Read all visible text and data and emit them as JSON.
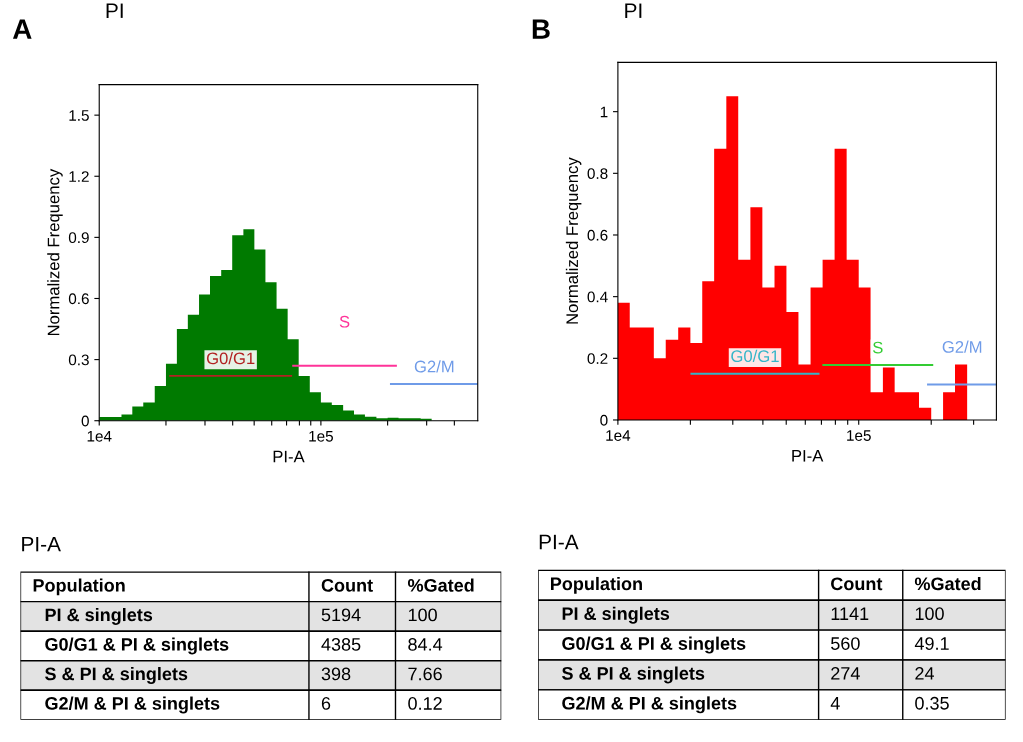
{
  "chart_data": [
    {
      "type": "histogram",
      "title": "PI",
      "annotations": [
        "A"
      ],
      "xlabel": "PI-A",
      "ylabel": "Normalized Frequency",
      "log": "x",
      "legend": false,
      "grid": false,
      "bins": [
        10000,
        11200,
        12600,
        14100,
        15800,
        17800,
        20000,
        22400,
        25100,
        28200,
        31600,
        35500,
        39800,
        44700,
        50100,
        56200,
        63100,
        70800,
        79400,
        89100,
        100000,
        112000,
        126000,
        141000,
        158000,
        178000,
        200000,
        224000,
        251000,
        282000,
        316000,
        355000,
        398000,
        447000,
        501000
      ],
      "values": [
        0.018,
        0.018,
        0.03,
        0.07,
        0.09,
        0.17,
        0.28,
        0.45,
        0.52,
        0.62,
        0.71,
        0.74,
        0.91,
        0.94,
        0.84,
        0.68,
        0.55,
        0.4,
        0.22,
        0.14,
        0.09,
        0.077,
        0.05,
        0.03,
        0.02,
        0.012,
        0.015,
        0.012,
        0.012,
        0.01,
        0,
        0,
        0,
        0
      ],
      "color": "#007a00",
      "series": [
        {
          "type": "line",
          "name": "G0/G1",
          "color": "#b22222",
          "x": [
            20900,
            73400
          ],
          "values": [
            0.22,
            0.22
          ]
        },
        {
          "type": "line",
          "name": "S",
          "color": "#ff3399",
          "x": [
            75000,
            218000
          ],
          "values": [
            0.27,
            0.27
          ]
        },
        {
          "type": "line",
          "name": "G2/M",
          "color": "#6f9be8",
          "x": [
            207000,
            510000
          ],
          "values": [
            0.18,
            0.18
          ]
        }
      ],
      "xlim": [
        10000,
        510000
      ],
      "ylim": [
        0,
        1.65
      ],
      "xticks": [
        {
          "value": 10000,
          "label": "1e4"
        },
        {
          "value": 20000,
          "label": null
        },
        {
          "value": 30000,
          "label": null
        },
        {
          "value": 40000,
          "label": null
        },
        {
          "value": 50000,
          "label": null
        },
        {
          "value": 60000,
          "label": null
        },
        {
          "value": 70000,
          "label": null
        },
        {
          "value": 80000,
          "label": null
        },
        {
          "value": 90000,
          "label": null
        },
        {
          "value": 100000,
          "label": "1e5"
        },
        {
          "value": 200000,
          "label": null
        },
        {
          "value": 300000,
          "label": null
        },
        {
          "value": 400000,
          "label": null
        }
      ],
      "yticks": [
        0,
        0.3,
        0.6,
        0.9,
        1.2,
        1.5
      ]
    },
    {
      "type": "other",
      "title": "PI-A",
      "categories": [
        "Population",
        "Count",
        "%Gated"
      ],
      "y_categories": [
        "PI & singlets",
        "G0/G1 & PI & singlets",
        "S & PI & singlets",
        "G2/M & PI & singlets"
      ],
      "cell_labels": [
        [
          "5194",
          "100"
        ],
        [
          "4385",
          "84.4"
        ],
        [
          "398",
          "7.66"
        ],
        [
          "6",
          "0.12"
        ]
      ]
    },
    {
      "type": "histogram",
      "title": "PI",
      "annotations": [
        "B"
      ],
      "xlabel": "PI-A",
      "ylabel": "Normalized Frequency",
      "log": "x",
      "legend": false,
      "grid": false,
      "bins": [
        10000,
        11200,
        12600,
        14100,
        15800,
        17800,
        20000,
        22400,
        25100,
        28200,
        31600,
        35500,
        39800,
        44700,
        50100,
        56200,
        63100,
        70800,
        79400,
        89100,
        100000,
        112000,
        126000,
        141000,
        158000,
        178000,
        200000,
        224000,
        251000,
        282000,
        316000,
        355000
      ],
      "values": [
        0.38,
        0.3,
        0.3,
        0.2,
        0.26,
        0.3,
        0.25,
        0.45,
        0.88,
        1.05,
        0.52,
        0.69,
        0.43,
        0.5,
        0.35,
        0.18,
        0.43,
        0.52,
        0.88,
        0.52,
        0.43,
        0.09,
        0.17,
        0.09,
        0.09,
        0.04,
        0,
        0.09,
        0.18,
        0,
        0
      ],
      "color": "#ff0000",
      "series": [
        {
          "type": "line",
          "name": "G0/G1",
          "color": "#33b5c8",
          "x": [
            20200,
            68100
          ],
          "values": [
            0.15,
            0.15
          ]
        },
        {
          "type": "line",
          "name": "S",
          "color": "#33cc33",
          "x": [
            71300,
            202000
          ],
          "values": [
            0.178,
            0.178
          ]
        },
        {
          "type": "line",
          "name": "G2/M",
          "color": "#6f9be8",
          "x": [
            194000,
            373000
          ],
          "values": [
            0.115,
            0.115
          ]
        }
      ],
      "xlim": [
        10000,
        373000
      ],
      "ylim": [
        0,
        1.16
      ],
      "xticks": [
        {
          "value": 10000,
          "label": "1e4"
        },
        {
          "value": 20000,
          "label": null
        },
        {
          "value": 30000,
          "label": null
        },
        {
          "value": 40000,
          "label": null
        },
        {
          "value": 50000,
          "label": null
        },
        {
          "value": 60000,
          "label": null
        },
        {
          "value": 70000,
          "label": null
        },
        {
          "value": 80000,
          "label": null
        },
        {
          "value": 90000,
          "label": null
        },
        {
          "value": 100000,
          "label": "1e5"
        },
        {
          "value": 200000,
          "label": null
        },
        {
          "value": 300000,
          "label": null
        }
      ],
      "yticks": [
        0,
        0.2,
        0.4,
        0.6,
        0.8,
        1
      ]
    },
    {
      "type": "other",
      "title": "PI-A",
      "categories": [
        "Population",
        "Count",
        "%Gated"
      ],
      "y_categories": [
        "PI & singlets",
        "G0/G1 & PI & singlets",
        "S & PI & singlets",
        "G2/M & PI & singlets"
      ],
      "cell_labels": [
        [
          "1141",
          "100"
        ],
        [
          "560",
          "49.1"
        ],
        [
          "274",
          "24"
        ],
        [
          "4",
          "0.35"
        ]
      ]
    }
  ]
}
